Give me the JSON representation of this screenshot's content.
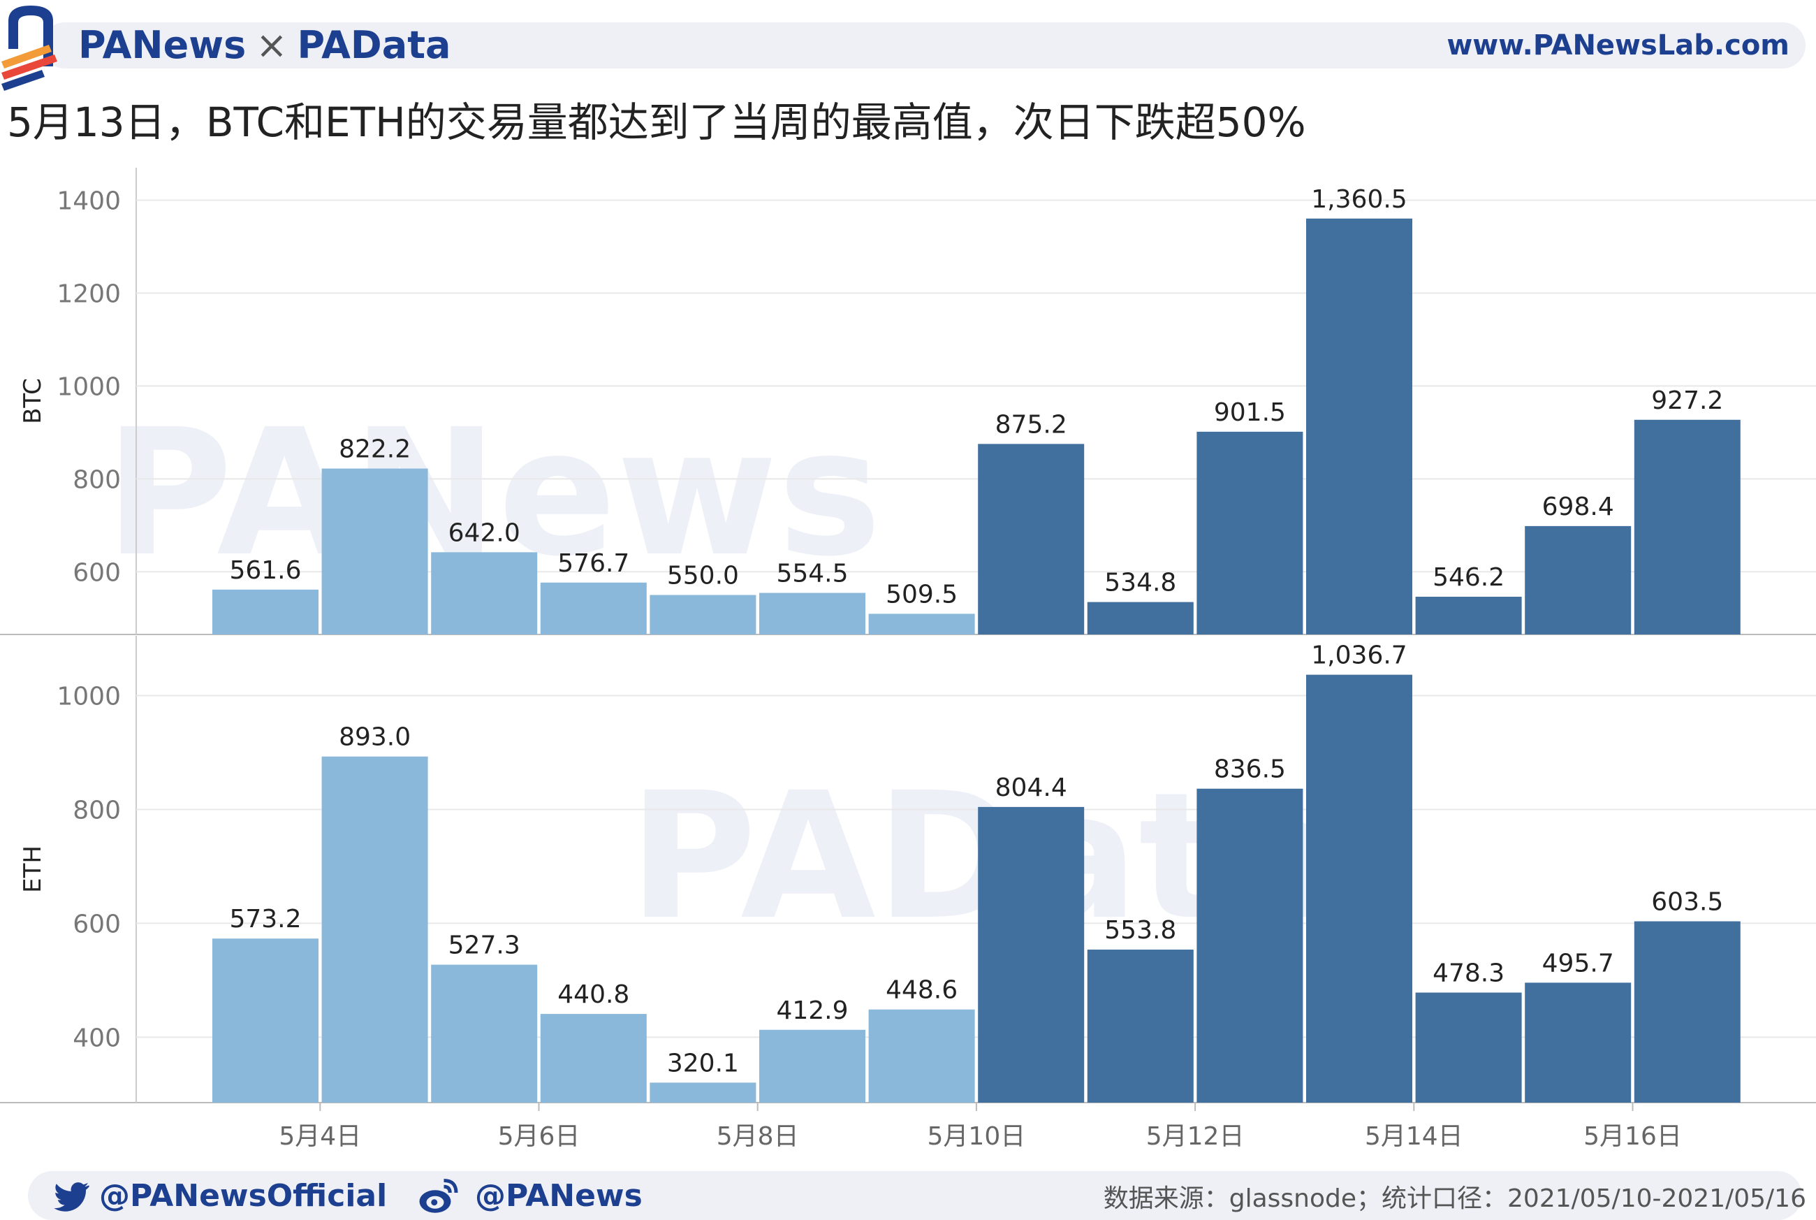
{
  "header": {
    "brand_left": "PANews",
    "brand_sep": "×",
    "brand_right": "PAData",
    "url": "www.PANewsLab.com"
  },
  "watermarks": [
    "PANews",
    "PAData"
  ],
  "chart_data": {
    "type": "bar",
    "title": "5月13日，BTC和ETH的交易量都达到了当周的最高值，次日下跌超50%",
    "x": [
      "2021-05-03",
      "2021-05-04",
      "2021-05-05",
      "2021-05-06",
      "2021-05-07",
      "2021-05-08",
      "2021-05-09",
      "2021-05-10",
      "2021-05-11",
      "2021-05-12",
      "2021-05-13",
      "2021-05-14",
      "2021-05-15",
      "2021-05-16"
    ],
    "x_tick_labels": [
      "5月4日",
      "5月6日",
      "5月8日",
      "5月10日",
      "5月12日",
      "5月14日",
      "5月16日"
    ],
    "grid": true,
    "highlight_colors": {
      "before": "#8ab8da",
      "during": "#41709f"
    },
    "panels": [
      {
        "ylabel": "BTC",
        "ylim": [
          465,
          1470
        ],
        "yticks": [
          600,
          800,
          1000,
          1200,
          1400
        ],
        "values": [
          561.6,
          822.2,
          642.0,
          576.7,
          550.0,
          554.5,
          509.5,
          875.2,
          534.8,
          901.5,
          1360.5,
          546.2,
          698.4,
          927.2
        ],
        "labels": [
          "561.6",
          "822.2",
          "642.0",
          "576.7",
          "550.0",
          "554.5",
          "509.5",
          "875.2",
          "534.8",
          "901.5",
          "1,360.5",
          "546.2",
          "698.4",
          "927.2"
        ]
      },
      {
        "ylabel": "ETH",
        "ylim": [
          285,
          1105
        ],
        "yticks": [
          400,
          600,
          800,
          1000
        ],
        "values": [
          573.2,
          893.0,
          527.3,
          440.8,
          320.1,
          412.9,
          448.6,
          804.4,
          553.8,
          836.5,
          1036.7,
          478.3,
          495.7,
          603.5
        ],
        "labels": [
          "573.2",
          "893.0",
          "527.3",
          "440.8",
          "320.1",
          "412.9",
          "448.6",
          "804.4",
          "553.8",
          "836.5",
          "1,036.7",
          "478.3",
          "495.7",
          "603.5"
        ]
      }
    ]
  },
  "footer": {
    "twitter": "@PANewsOfficial",
    "weibo": "@PANews",
    "source": "数据来源：glassnode；统计口径：2021/05/10-2021/05/16"
  }
}
